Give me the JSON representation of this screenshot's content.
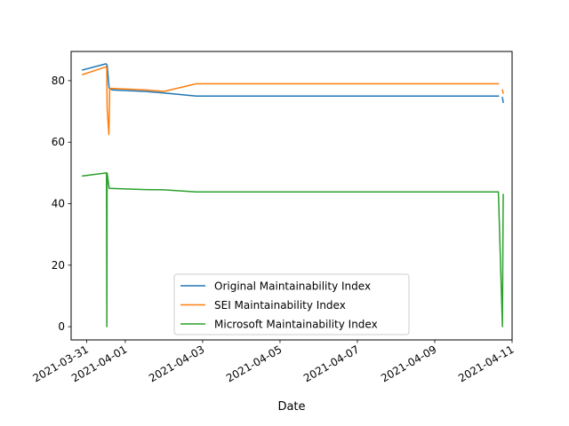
{
  "chart_data": {
    "type": "line",
    "xlabel": "Date",
    "ylabel": "",
    "xlim": [
      "2021-03-30T14:24",
      "2021-04-11T00:00"
    ],
    "ylim": [
      -4.3,
      89.5
    ],
    "x_ticks": [
      "2021-03-31",
      "2021-04-01",
      "2021-04-03",
      "2021-04-05",
      "2021-04-07",
      "2021-04-09",
      "2021-04-11"
    ],
    "y_ticks": [
      0,
      20,
      40,
      60,
      80
    ],
    "grid": false,
    "legend_position": "lower center",
    "series": [
      {
        "name": "Original Maintainability Index",
        "color": "#1f77b4",
        "segments": [
          [
            [
              "2021-03-30T21:30",
              83.5
            ],
            [
              "2021-03-31T12:00",
              85.5
            ],
            [
              "2021-03-31T12:45",
              85.0
            ],
            [
              "2021-03-31T14:00",
              77.5
            ],
            [
              "2021-03-31T16:00",
              77.0
            ],
            [
              "2021-04-01T12:00",
              76.5
            ],
            [
              "2021-04-02T00:00",
              76.0
            ],
            [
              "2021-04-02T20:00",
              75.0
            ],
            [
              "2021-04-10T15:30",
              75.0
            ]
          ],
          [
            [
              "2021-04-10T18:00",
              74.5
            ],
            [
              "2021-04-10T18:30",
              73.0
            ]
          ]
        ]
      },
      {
        "name": "SEI Maintainability Index",
        "color": "#ff7f0e",
        "segments": [
          [
            [
              "2021-03-30T21:30",
              82.0
            ],
            [
              "2021-03-31T12:00",
              84.5
            ],
            [
              "2021-03-31T12:30",
              84.0
            ],
            [
              "2021-03-31T12:45",
              71.0
            ],
            [
              "2021-03-31T13:50",
              62.5
            ],
            [
              "2021-03-31T14:20",
              77.5
            ],
            [
              "2021-03-31T16:00",
              77.5
            ],
            [
              "2021-04-01T12:00",
              77.0
            ],
            [
              "2021-04-02T00:00",
              76.5
            ],
            [
              "2021-04-02T20:00",
              79.0
            ],
            [
              "2021-04-10T15:30",
              79.0
            ]
          ],
          [
            [
              "2021-04-10T18:00",
              77.0
            ],
            [
              "2021-04-10T18:30",
              76.0
            ]
          ]
        ]
      },
      {
        "name": "Microsoft Maintainability Index",
        "color": "#2ca02c",
        "segments": [
          [
            [
              "2021-03-30T21:30",
              49.0
            ],
            [
              "2021-03-31T12:00",
              50.0
            ],
            [
              "2021-03-31T12:20",
              50.0
            ],
            [
              "2021-03-31T12:35",
              0.0
            ],
            [
              "2021-03-31T12:45",
              50.0
            ],
            [
              "2021-03-31T14:00",
              45.0
            ],
            [
              "2021-04-01T12:00",
              44.6
            ],
            [
              "2021-04-02T00:00",
              44.5
            ],
            [
              "2021-04-02T20:00",
              43.8
            ],
            [
              "2021-04-10T15:30",
              43.8
            ],
            [
              "2021-04-10T18:00",
              0.0
            ],
            [
              "2021-04-10T18:30",
              43.0
            ]
          ]
        ]
      }
    ]
  }
}
